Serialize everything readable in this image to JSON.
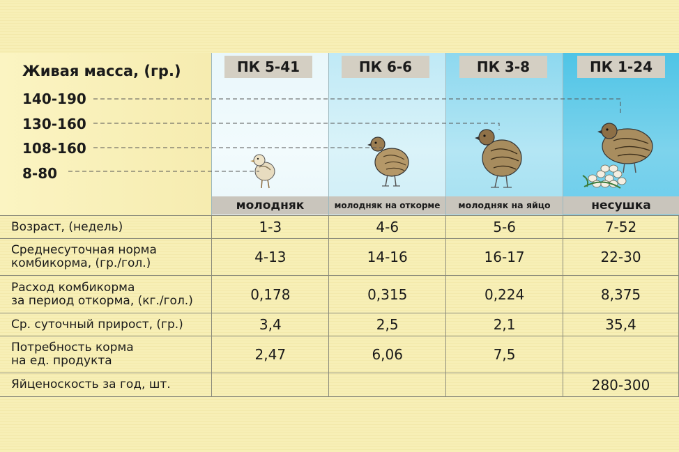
{
  "live_weight": {
    "title": "Живая масса, (гр.)",
    "values": [
      "140-190",
      "130-160",
      "108-160",
      "8-80"
    ]
  },
  "columns": [
    {
      "feed": "ПК 5-41",
      "stage": "молодняк"
    },
    {
      "feed": "ПК 6-6",
      "stage": "молодняк на откорме"
    },
    {
      "feed": "ПК 3-8",
      "stage": "молодняк на яйцо"
    },
    {
      "feed": "ПК 1-24",
      "stage": "несушка"
    }
  ],
  "rows": [
    {
      "label_lines": [
        "Возраст, (недель)"
      ],
      "values": [
        "1-3",
        "4-6",
        "5-6",
        "7-52"
      ]
    },
    {
      "label_lines": [
        "Среднесуточная норма",
        "комбикорма, (гр./гол.)"
      ],
      "values": [
        "4-13",
        "14-16",
        "16-17",
        "22-30"
      ]
    },
    {
      "label_lines": [
        "Расход комбикорма",
        "за период откорма, (кг./гол.)"
      ],
      "values": [
        "0,178",
        "0,315",
        "0,224",
        "8,375"
      ]
    },
    {
      "label_lines": [
        "Ср. суточный прирост, (гр.)"
      ],
      "values": [
        "3,4",
        "2,5",
        "2,1",
        "35,4"
      ]
    },
    {
      "label_lines": [
        "Потребность корма",
        "на ед. продукта"
      ],
      "values": [
        "2,47",
        "6,06",
        "7,5",
        ""
      ]
    },
    {
      "label_lines": [
        "Яйценоскость за год, шт."
      ],
      "values": [
        "",
        "",
        "",
        "280-300"
      ]
    }
  ],
  "colors": {
    "background": "#f8f0b8",
    "col1": "#e9f7fb",
    "col2": "#bfe9f6",
    "col3": "#8dd8ef",
    "col4": "#4ec4e6",
    "label_box": "#d4cfc3"
  }
}
